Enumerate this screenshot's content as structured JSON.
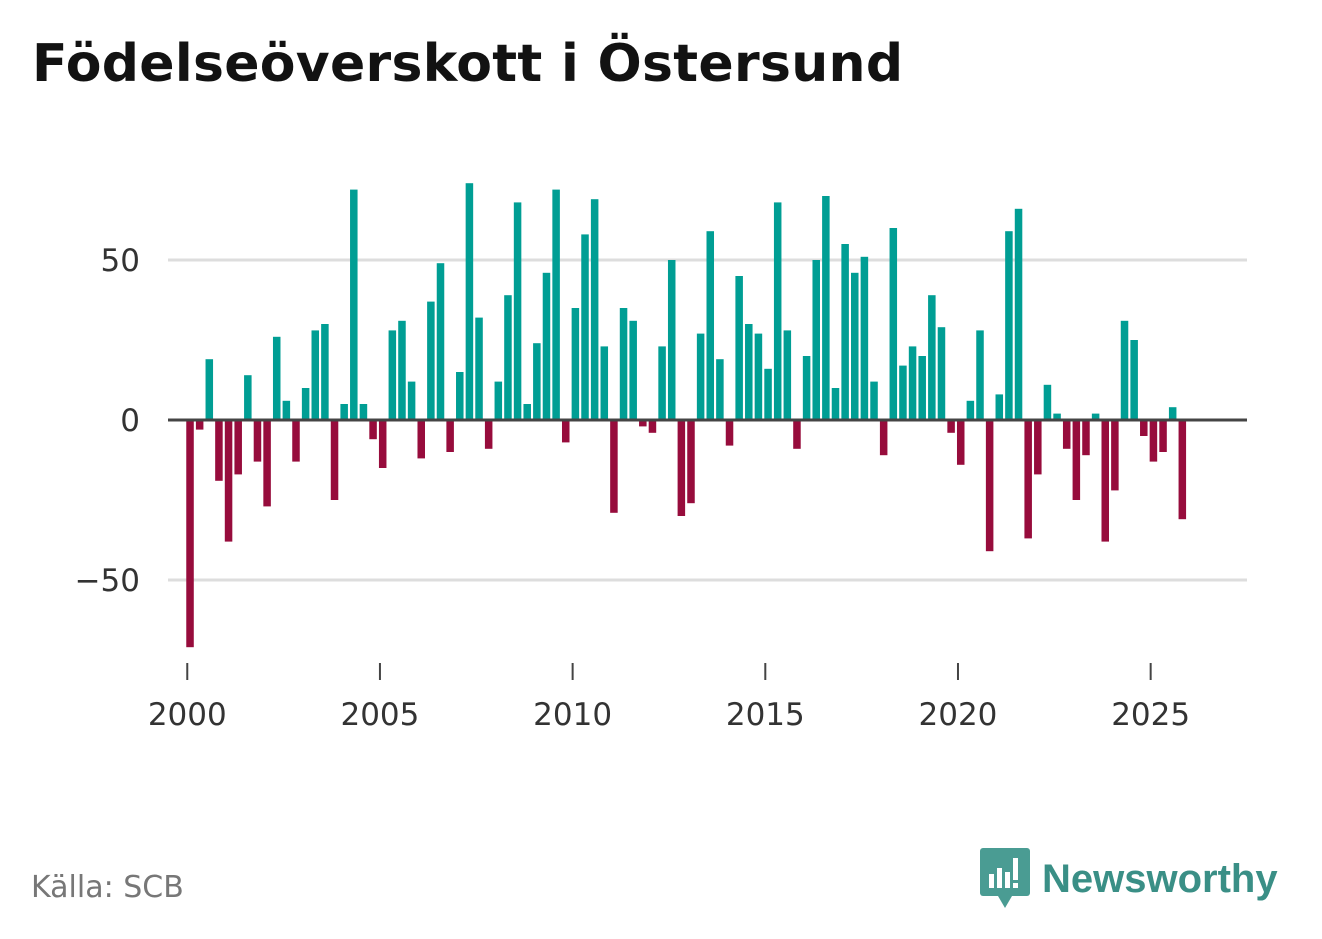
{
  "title": "Födelseöverskott i Östersund",
  "source": "Källa: SCB",
  "brand": {
    "name": "Newsworthy",
    "icon": "newsworthy-logo-icon"
  },
  "colors": {
    "positive": "#009e94",
    "negative": "#970c3c",
    "grid": "#dddddd",
    "axis": "#444444"
  },
  "chart_data": {
    "type": "bar",
    "title": "Födelseöverskott i Östersund",
    "xlabel": "",
    "ylabel": "",
    "ylim": [
      -75,
      75
    ],
    "xlim": [
      1999.5,
      2027.5
    ],
    "yticks": [
      -50,
      0,
      50
    ],
    "ytick_labels": [
      "−50",
      "0",
      "50"
    ],
    "xticks": [
      2000,
      2005,
      2010,
      2015,
      2020,
      2025
    ],
    "xtick_labels": [
      "2000",
      "2005",
      "2010",
      "2015",
      "2020",
      "2025"
    ],
    "start_year": 2000,
    "periods_per_year": 4,
    "values": [
      -71,
      -3,
      19,
      -19,
      -38,
      -17,
      14,
      -13,
      -27,
      26,
      6,
      -13,
      10,
      28,
      30,
      -25,
      5,
      72,
      5,
      -6,
      -15,
      28,
      31,
      12,
      -12,
      37,
      49,
      -10,
      15,
      74,
      32,
      -9,
      12,
      39,
      68,
      5,
      24,
      46,
      72,
      -7,
      35,
      58,
      69,
      23,
      -29,
      35,
      31,
      -2,
      -4,
      23,
      50,
      -30,
      -26,
      27,
      59,
      19,
      -8,
      45,
      30,
      27,
      16,
      68,
      28,
      -9,
      20,
      50,
      70,
      10,
      55,
      46,
      51,
      12,
      -11,
      60,
      17,
      23,
      20,
      39,
      29,
      -4,
      -14,
      6,
      28,
      -41,
      8,
      59,
      66,
      -37,
      -17,
      11,
      2,
      -9,
      -25,
      -11,
      2,
      -38,
      -22,
      31,
      25,
      -5,
      -13,
      -10,
      4,
      -31
    ]
  }
}
